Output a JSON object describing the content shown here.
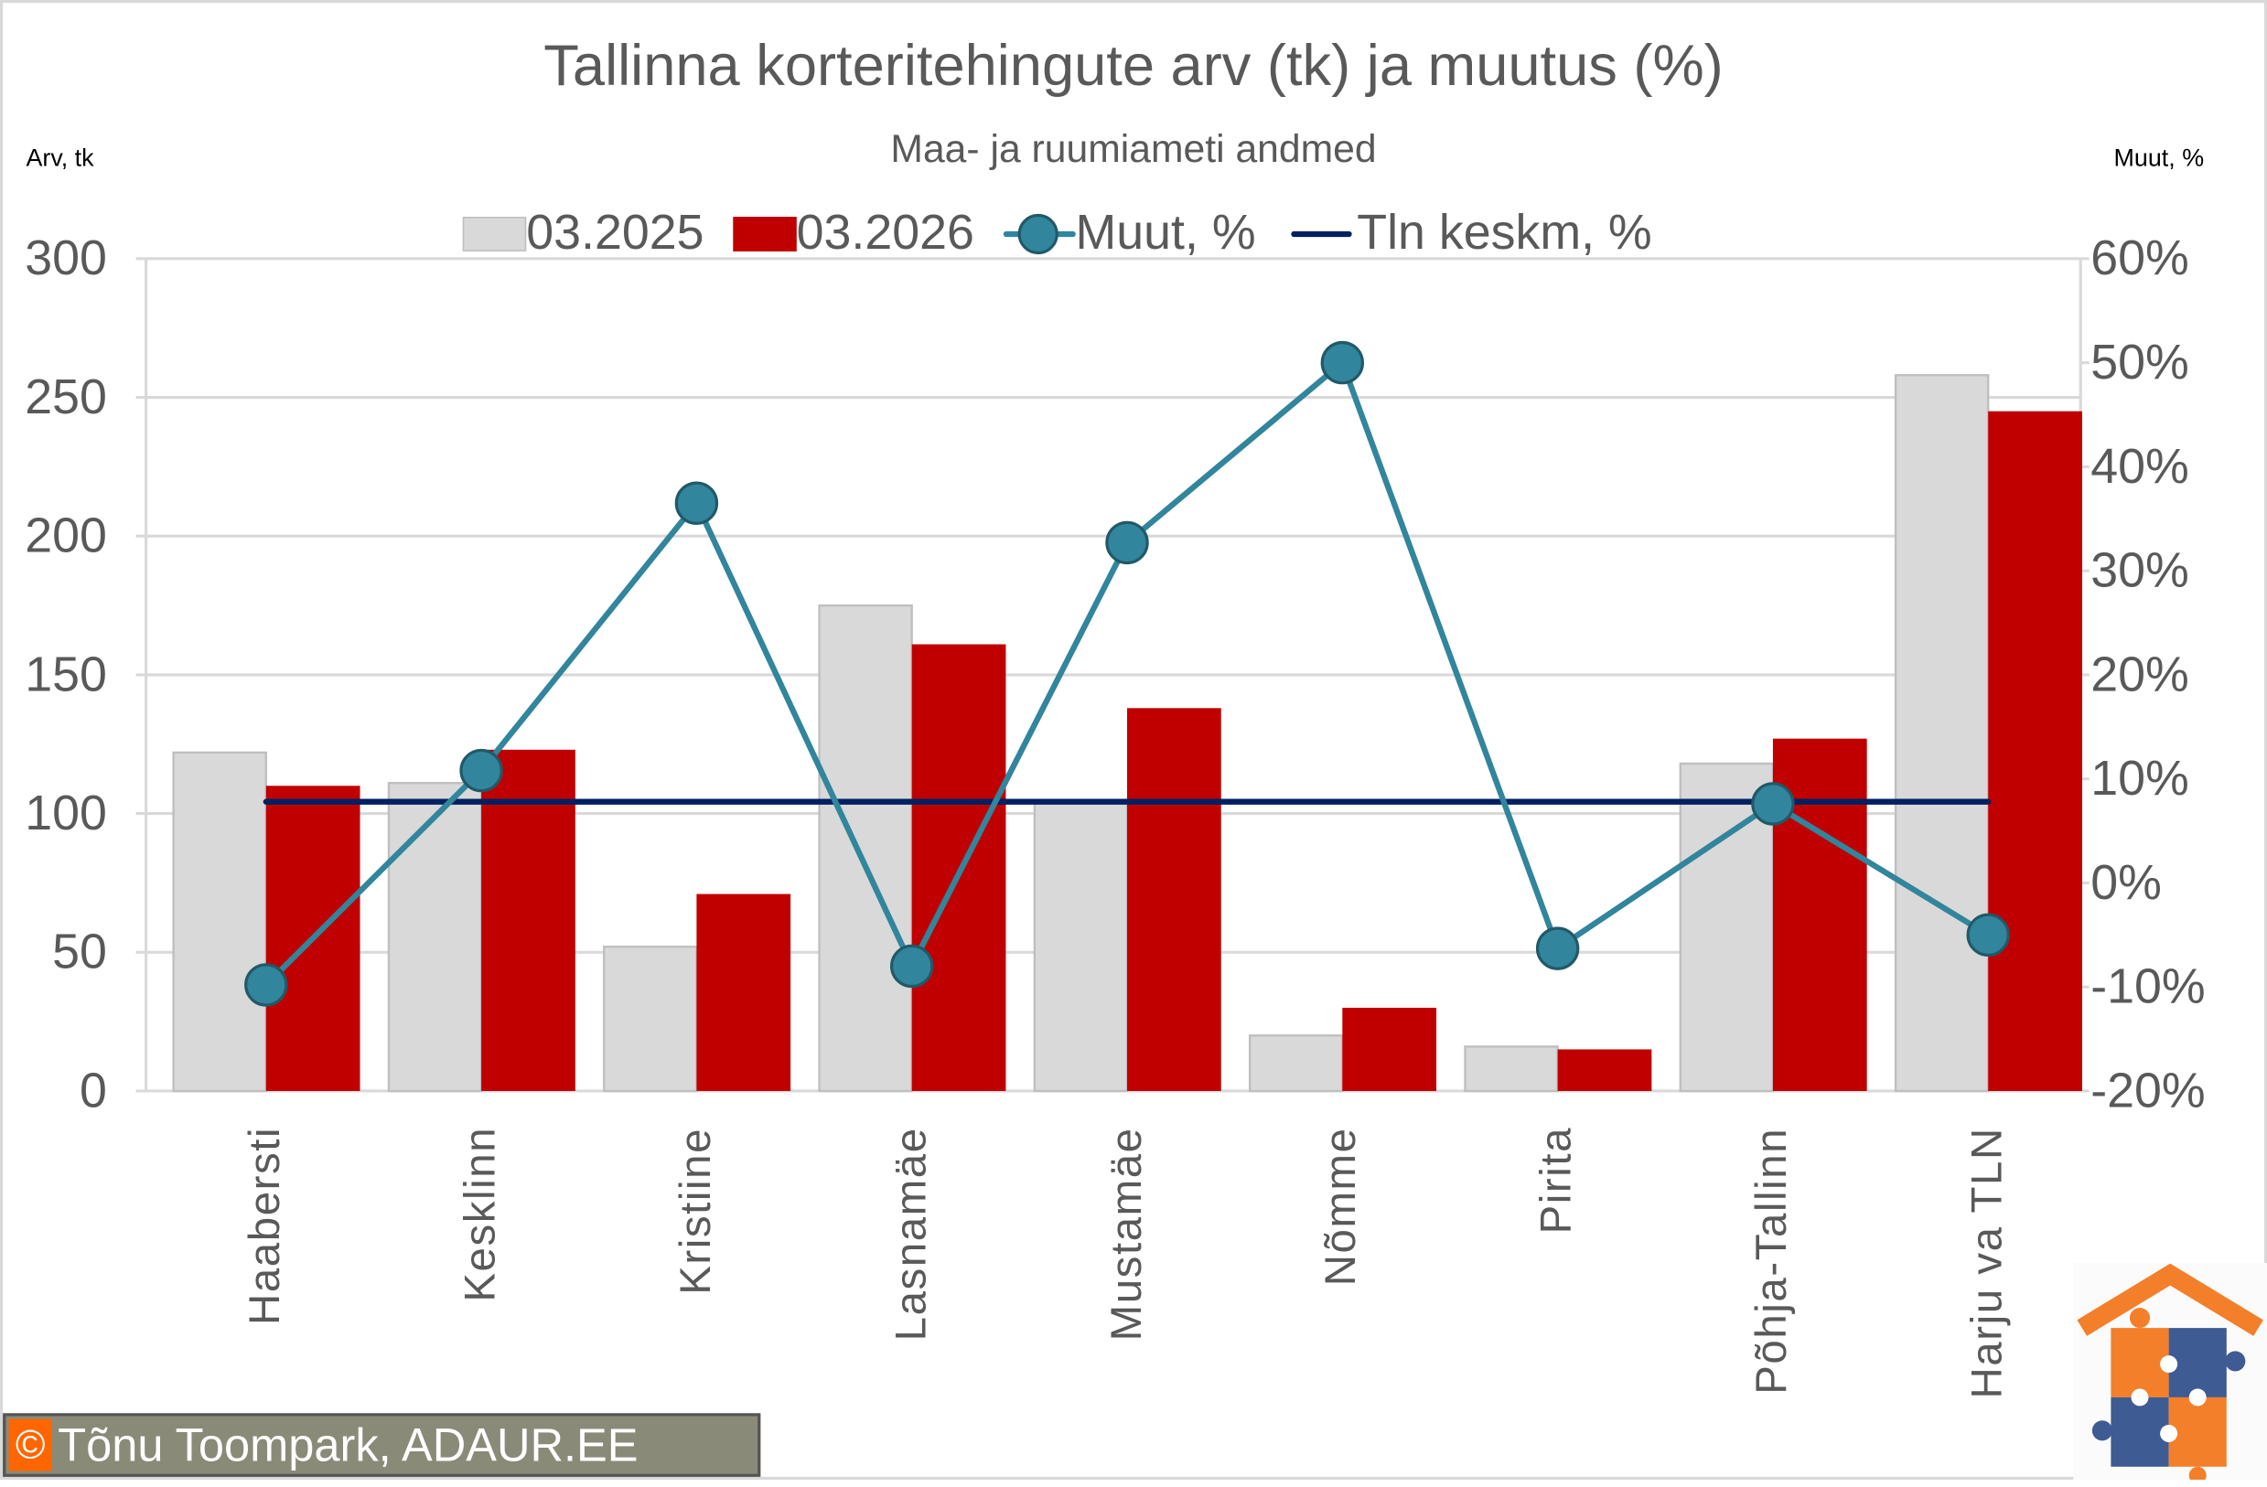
{
  "header": {
    "title": "Tallinna korteritehingute arv (tk) ja muutus (%)",
    "subtitle": "Maa- ja ruumiameti andmed",
    "left_axis_title": "Arv, tk",
    "right_axis_title": "Muut, %"
  },
  "legend": [
    {
      "label": "03.2025",
      "type": "box",
      "color": "#d9d9d9"
    },
    {
      "label": "03.2026",
      "type": "box",
      "color": "#c00000"
    },
    {
      "label": "Muut, %",
      "type": "line-marker",
      "color": "#31859c"
    },
    {
      "label": "Tln keskm, %",
      "type": "line",
      "color": "#002060"
    }
  ],
  "axes": {
    "left_ticks": [
      "300",
      "250",
      "200",
      "150",
      "100",
      "50",
      "0"
    ],
    "right_ticks": [
      "60%",
      "50%",
      "40%",
      "30%",
      "20%",
      "10%",
      "0%",
      "-10%",
      "-20%"
    ]
  },
  "footer": {
    "copyright_symbol": "©",
    "credit": "Tõnu Toompark, ADAUR.EE",
    "logo": "house-puzzle-logo"
  },
  "colors": {
    "bar_2025": "#d9d9d9",
    "bar_2025_border": "#bfbfbf",
    "bar_2026": "#c00000",
    "line_change": "#31859c",
    "marker_border": "#215968",
    "line_avg": "#002060",
    "gridline": "#d9d9d9"
  },
  "chart_data": {
    "type": "bar",
    "title": "Tallinna korteritehingute arv (tk) ja muutus (%)",
    "subtitle": "Maa- ja ruumiameti andmed",
    "xlabel": "",
    "ylabel": "Arv, tk",
    "y2label": "Muut, %",
    "ylim": [
      0,
      300
    ],
    "y2lim": [
      -20,
      60
    ],
    "grid": true,
    "legend_position": "top",
    "categories": [
      "Haabersti",
      "Kesklinn",
      "Kristiine",
      "Lasnamäe",
      "Mustamäe",
      "Nõmme",
      "Pirita",
      "Põhja-Tallinn",
      "Harju va TLN"
    ],
    "series": [
      {
        "name": "03.2025",
        "type": "bar",
        "axis": "left",
        "values": [
          122,
          111,
          52,
          175,
          104,
          20,
          16,
          118,
          258
        ]
      },
      {
        "name": "03.2026",
        "type": "bar",
        "axis": "left",
        "values": [
          110,
          123,
          71,
          161,
          138,
          30,
          15,
          127,
          245
        ]
      },
      {
        "name": "Muut, %",
        "type": "line",
        "axis": "right",
        "values": [
          -9.8,
          10.8,
          36.5,
          -8.0,
          32.7,
          50.0,
          -6.3,
          7.6,
          -5.0
        ]
      },
      {
        "name": "Tln keskm, %",
        "type": "line",
        "axis": "right",
        "values": [
          7.8,
          7.8,
          7.8,
          7.8,
          7.8,
          7.8,
          7.8,
          7.8,
          7.8
        ]
      }
    ]
  }
}
